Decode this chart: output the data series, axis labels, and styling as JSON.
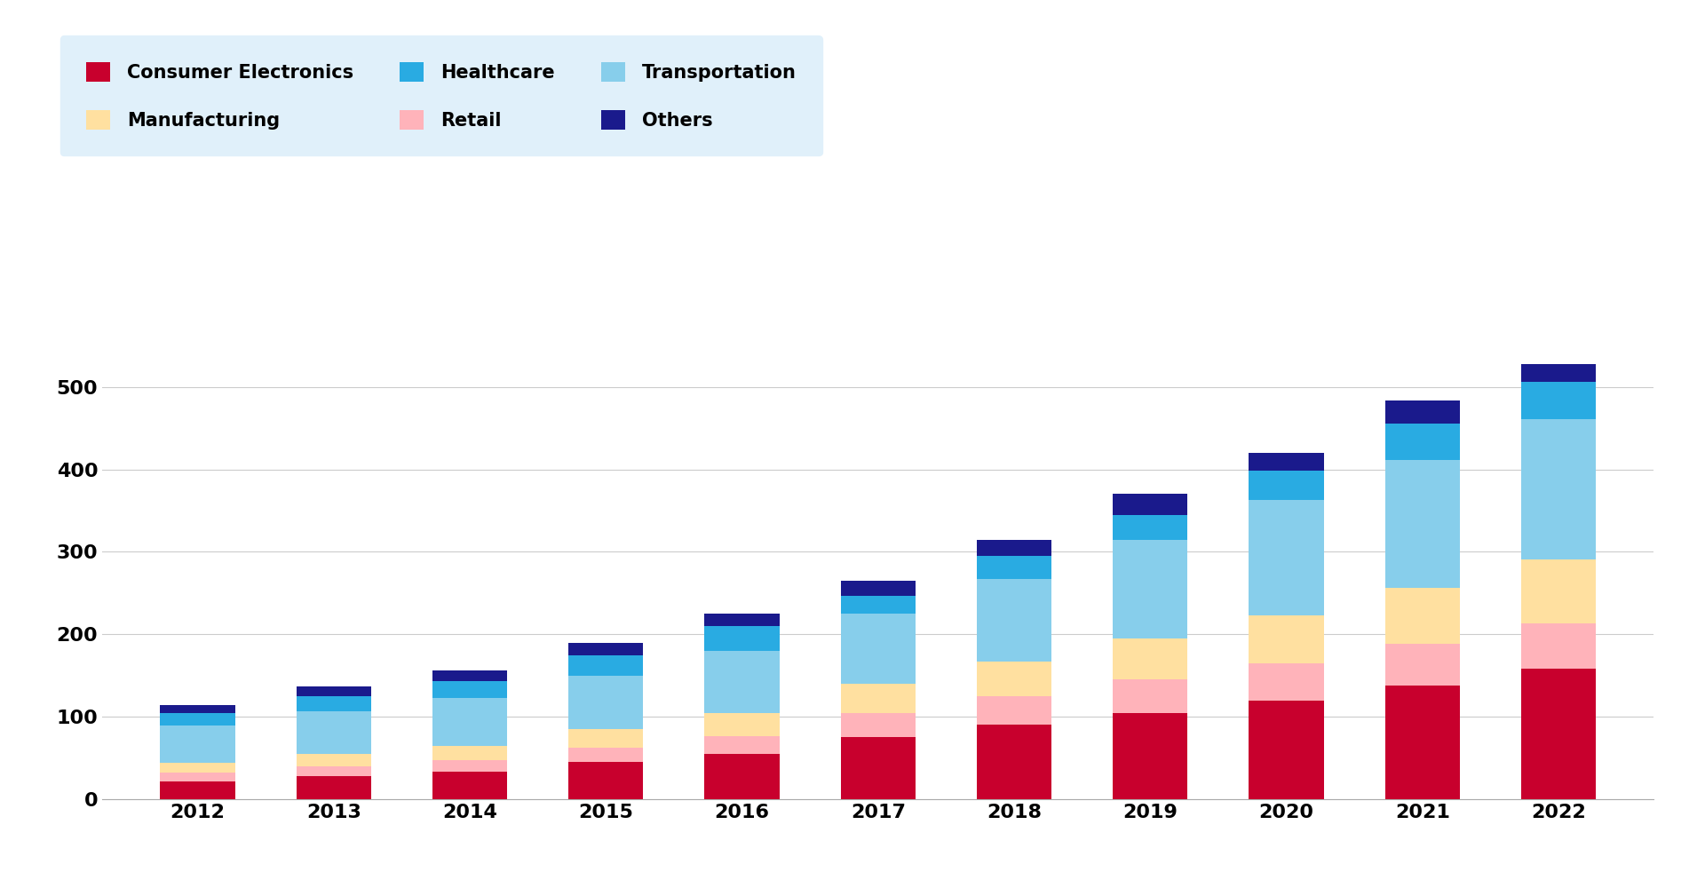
{
  "years": [
    2012,
    2013,
    2014,
    2015,
    2016,
    2017,
    2018,
    2019,
    2020,
    2021,
    2022
  ],
  "series": {
    "Consumer Electronics": {
      "color": "#C8002D",
      "values": [
        22,
        28,
        33,
        45,
        55,
        75,
        90,
        105,
        120,
        138,
        158
      ]
    },
    "Retail": {
      "color": "#FFB3BA",
      "values": [
        10,
        12,
        14,
        18,
        22,
        30,
        35,
        40,
        45,
        50,
        55
      ]
    },
    "Manufacturing": {
      "color": "#FFE0A0",
      "values": [
        12,
        15,
        18,
        22,
        28,
        35,
        42,
        50,
        58,
        68,
        78
      ]
    },
    "Transportation": {
      "color": "#87CEEB",
      "values": [
        45,
        52,
        58,
        65,
        75,
        85,
        100,
        120,
        140,
        155,
        170
      ]
    },
    "Healthcare": {
      "color": "#29ABE2",
      "values": [
        15,
        18,
        20,
        25,
        30,
        22,
        28,
        30,
        35,
        45,
        45
      ]
    },
    "Others": {
      "color": "#1A1A8C",
      "values": [
        10,
        12,
        13,
        15,
        15,
        18,
        20,
        25,
        22,
        28,
        22
      ]
    }
  },
  "ylim": [
    0,
    560
  ],
  "yticks": [
    0,
    100,
    200,
    300,
    400,
    500
  ],
  "legend_bg": "#E0F0FA",
  "legend_order": [
    "Consumer Electronics",
    "Manufacturing",
    "Healthcare",
    "Retail",
    "Transportation",
    "Others"
  ],
  "stack_order": [
    "Consumer Electronics",
    "Retail",
    "Manufacturing",
    "Transportation",
    "Healthcare",
    "Others"
  ],
  "bar_width": 0.55,
  "background_color": "#FFFFFF",
  "grid_color": "#CCCCCC",
  "axis_fontsize": 16,
  "legend_fontsize": 15
}
